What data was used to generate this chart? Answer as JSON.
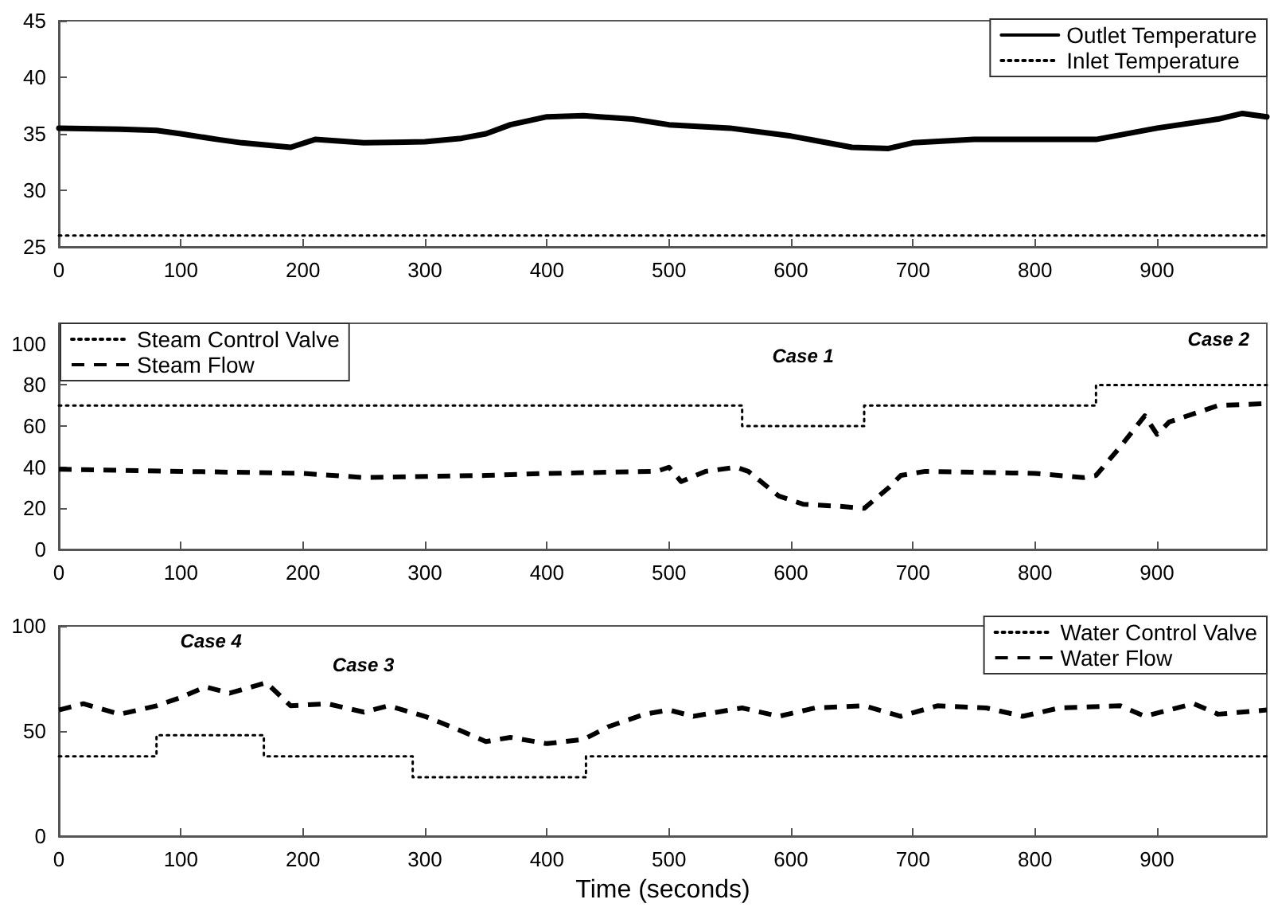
{
  "chart_data": [
    {
      "type": "line",
      "xlim": [
        0,
        990
      ],
      "xticks": [
        0,
        100,
        200,
        300,
        400,
        500,
        600,
        700,
        800,
        900
      ],
      "ylim": [
        25,
        45
      ],
      "yticks": [
        25,
        30,
        35,
        40,
        45
      ],
      "grid": false,
      "legend": "top right",
      "marker": "none",
      "series": [
        {
          "name": "Outlet Temperature",
          "color": "#000000",
          "line_style": "solid",
          "x": [
            0,
            50,
            80,
            100,
            130,
            150,
            190,
            210,
            250,
            300,
            330,
            350,
            370,
            400,
            430,
            470,
            500,
            550,
            600,
            650,
            680,
            700,
            750,
            800,
            850,
            900,
            950,
            970,
            990
          ],
          "values": [
            35.5,
            35.4,
            35.3,
            35,
            34.5,
            34.2,
            33.8,
            34.5,
            34.2,
            34.3,
            34.6,
            35,
            35.8,
            36.5,
            36.6,
            36.3,
            35.8,
            35.5,
            34.8,
            33.8,
            33.7,
            34.2,
            34.5,
            34.5,
            34.5,
            35.5,
            36.3,
            36.8,
            36.5
          ]
        },
        {
          "name": "Inlet Temperature",
          "color": "#000000",
          "line_style": "dotted",
          "x": [
            0,
            100,
            200,
            300,
            400,
            500,
            600,
            700,
            800,
            900,
            990
          ],
          "values": [
            26,
            26,
            26,
            26,
            26,
            26,
            26,
            26,
            26,
            26,
            26
          ]
        }
      ]
    },
    {
      "type": "line",
      "xlim": [
        0,
        990
      ],
      "xticks": [
        0,
        100,
        200,
        300,
        400,
        500,
        600,
        700,
        800,
        900
      ],
      "ylim": [
        0,
        110
      ],
      "yticks": [
        0,
        20,
        40,
        60,
        80,
        100
      ],
      "grid": false,
      "legend": "top left",
      "marker": "none",
      "annotations": [
        "Case 1",
        "Case 2"
      ],
      "series": [
        {
          "name": "Steam Control Valve",
          "type": "step",
          "color": "#000000",
          "line_style": "dotted",
          "x": [
            0,
            560,
            660,
            850,
            990
          ],
          "values": [
            70,
            60,
            70,
            80,
            80
          ]
        },
        {
          "name": "Steam Flow",
          "color": "#000000",
          "line_style": "dashed",
          "x": [
            0,
            100,
            200,
            250,
            350,
            400,
            490,
            500,
            510,
            530,
            555,
            565,
            590,
            610,
            640,
            660,
            680,
            690,
            710,
            800,
            840,
            850,
            870,
            890,
            900,
            910,
            950,
            990
          ],
          "values": [
            39,
            38,
            37,
            35,
            36,
            37,
            38,
            40,
            33,
            38,
            40,
            38,
            26,
            22,
            21,
            20,
            30,
            36,
            38,
            37,
            35,
            36,
            50,
            65,
            56,
            62,
            70,
            71
          ]
        }
      ]
    },
    {
      "type": "line",
      "xlim": [
        0,
        990
      ],
      "xticks": [
        0,
        100,
        200,
        300,
        400,
        500,
        600,
        700,
        800,
        900
      ],
      "ylim": [
        0,
        100
      ],
      "yticks": [
        0,
        50,
        100
      ],
      "grid": false,
      "legend": "top right",
      "marker": "none",
      "xlabel": "Time (seconds)",
      "annotations": [
        "Case 4",
        "Case 3"
      ],
      "series": [
        {
          "name": "Water Control Valve",
          "type": "step",
          "color": "#000000",
          "line_style": "dotted",
          "x": [
            0,
            80,
            168,
            290,
            432,
            990
          ],
          "values": [
            38,
            48,
            38,
            28,
            38,
            38
          ]
        },
        {
          "name": "Water Flow",
          "color": "#000000",
          "line_style": "dashed",
          "x": [
            0,
            20,
            50,
            80,
            100,
            120,
            140,
            170,
            190,
            220,
            250,
            270,
            300,
            330,
            350,
            370,
            400,
            430,
            450,
            480,
            500,
            520,
            560,
            590,
            620,
            660,
            690,
            720,
            760,
            790,
            820,
            870,
            890,
            930,
            950,
            990
          ],
          "values": [
            60,
            63,
            58,
            62,
            66,
            71,
            68,
            73,
            62,
            63,
            59,
            62,
            57,
            50,
            45,
            47,
            44,
            46,
            52,
            58,
            60,
            57,
            61,
            57,
            61,
            62,
            57,
            62,
            61,
            57,
            61,
            62,
            57,
            63,
            58,
            60
          ]
        }
      ]
    }
  ]
}
